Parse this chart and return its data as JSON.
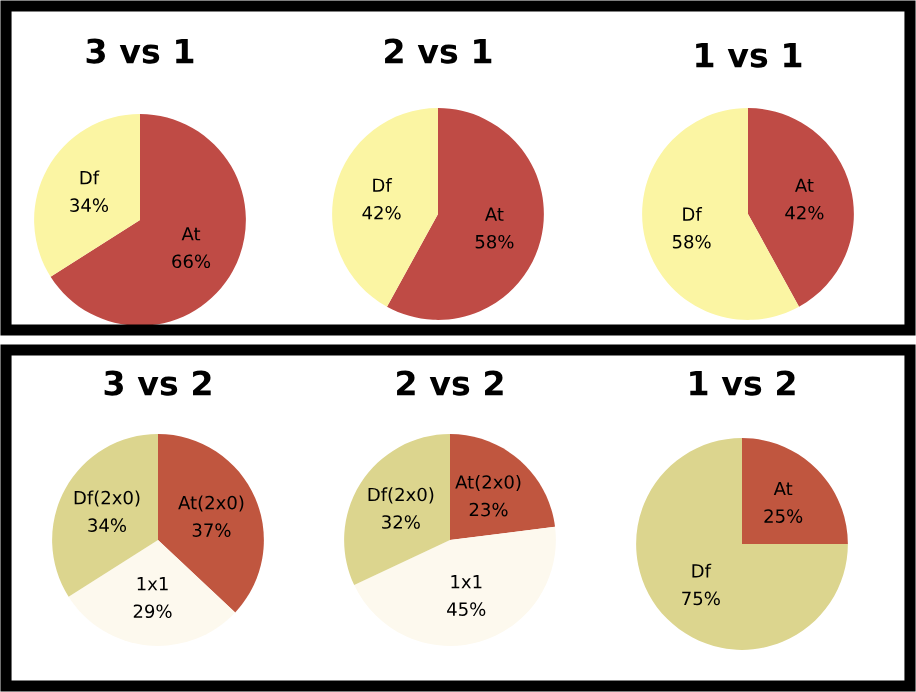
{
  "chart_data": [
    {
      "type": "pie",
      "title": "3 vs 1",
      "categories": [
        "At",
        "Df"
      ],
      "values": [
        66,
        34
      ],
      "colors": [
        "#bf4b45",
        "#fbf5a3"
      ],
      "value_labels": [
        "66%",
        "34%"
      ]
    },
    {
      "type": "pie",
      "title": "2 vs 1",
      "categories": [
        "At",
        "Df"
      ],
      "values": [
        58,
        42
      ],
      "colors": [
        "#bf4b45",
        "#fbf5a3"
      ],
      "value_labels": [
        "58%",
        "42%"
      ]
    },
    {
      "type": "pie",
      "title": "1 vs 1",
      "categories": [
        "At",
        "Df"
      ],
      "values": [
        42,
        58
      ],
      "colors": [
        "#bf4b45",
        "#fbf5a3"
      ],
      "value_labels": [
        "42%",
        "58%"
      ]
    },
    {
      "type": "pie",
      "title": "3 vs 2",
      "categories": [
        "At(2x0)",
        "1x1",
        "Df(2x0)"
      ],
      "values": [
        37,
        29,
        34
      ],
      "colors": [
        "#c0563f",
        "#fdf9ee",
        "#dcd58e"
      ],
      "value_labels": [
        "37%",
        "29%",
        "34%"
      ]
    },
    {
      "type": "pie",
      "title": "2 vs 2",
      "categories": [
        "At(2x0)",
        "1x1",
        "Df(2x0)"
      ],
      "values": [
        23,
        45,
        32
      ],
      "colors": [
        "#c0563f",
        "#fdf9ee",
        "#dcd58e"
      ],
      "value_labels": [
        "23%",
        "45%",
        "32%"
      ]
    },
    {
      "type": "pie",
      "title": "1 vs 2",
      "categories": [
        "At",
        "Df"
      ],
      "values": [
        25,
        75
      ],
      "colors": [
        "#c0563f",
        "#dcd58e"
      ],
      "value_labels": [
        "25%",
        "75%"
      ]
    }
  ]
}
